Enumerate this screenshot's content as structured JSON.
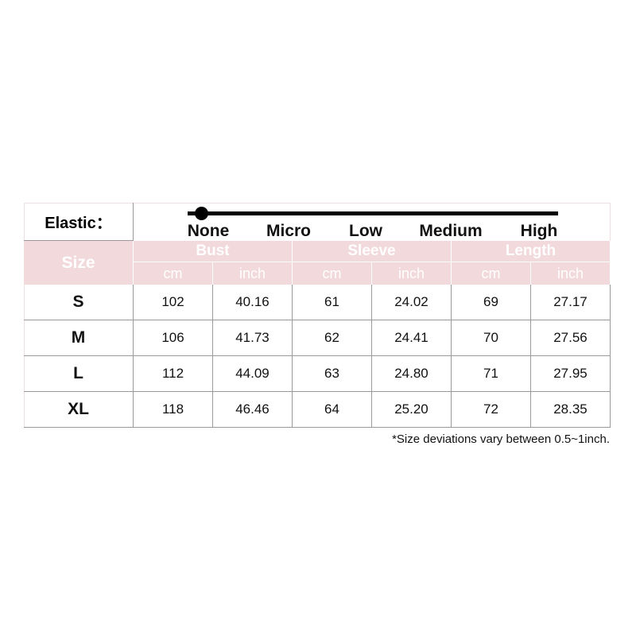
{
  "elastic": {
    "label": "Elastic：",
    "levels": [
      "None",
      "Micro",
      "Low",
      "Medium",
      "High"
    ],
    "selected": "None"
  },
  "header": {
    "size": "Size",
    "groups": [
      "Bust",
      "Sleeve",
      "Length"
    ],
    "units": [
      "cm",
      "inch",
      "cm",
      "inch",
      "cm",
      "inch"
    ]
  },
  "rows": [
    {
      "size": "S",
      "values": [
        "102",
        "40.16",
        "61",
        "24.02",
        "69",
        "27.17"
      ]
    },
    {
      "size": "M",
      "values": [
        "106",
        "41.73",
        "62",
        "24.41",
        "70",
        "27.56"
      ]
    },
    {
      "size": "L",
      "values": [
        "112",
        "44.09",
        "63",
        "24.80",
        "71",
        "27.95"
      ]
    },
    {
      "size": "XL",
      "values": [
        "118",
        "46.46",
        "64",
        "25.20",
        "72",
        "28.35"
      ]
    }
  ],
  "note": "*Size deviations vary between 0.5~1inch.",
  "colors": {
    "header_bg": "#f2d9dc"
  }
}
